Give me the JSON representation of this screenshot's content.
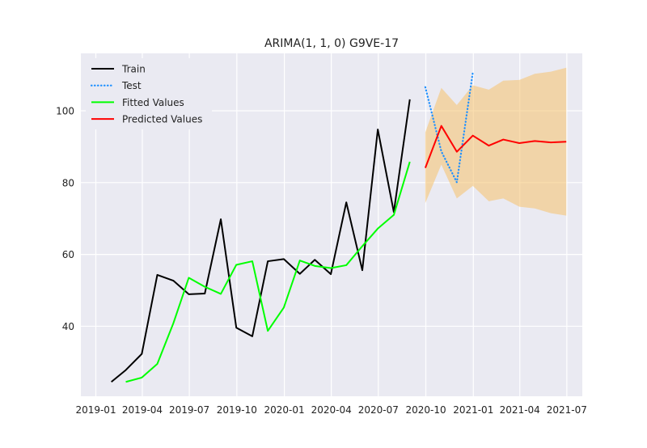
{
  "chart_data": {
    "type": "line",
    "title": "ARIMA(1, 1, 0) G9VE-17",
    "xlabel": "",
    "ylabel": "",
    "grid": true,
    "legend_position": "top-left",
    "xlim": [
      "2018-12-03",
      "2021-07-31"
    ],
    "ylim": [
      20.5,
      116
    ],
    "y_ticks": [
      40,
      60,
      80,
      100
    ],
    "x_ticks": [
      {
        "date": "2019-01-01",
        "label": "2019-01"
      },
      {
        "date": "2019-04-01",
        "label": "2019-04"
      },
      {
        "date": "2019-07-01",
        "label": "2019-07"
      },
      {
        "date": "2019-10-01",
        "label": "2019-10"
      },
      {
        "date": "2020-01-01",
        "label": "2020-01"
      },
      {
        "date": "2020-04-01",
        "label": "2020-04"
      },
      {
        "date": "2020-07-01",
        "label": "2020-07"
      },
      {
        "date": "2020-10-01",
        "label": "2020-10"
      },
      {
        "date": "2021-01-01",
        "label": "2021-01"
      },
      {
        "date": "2021-04-01",
        "label": "2021-04"
      },
      {
        "date": "2021-07-01",
        "label": "2021-07"
      }
    ],
    "series": [
      {
        "name": "Train",
        "color": "#000000",
        "style": "solid",
        "points": [
          [
            "2019-01-31",
            24.5
          ],
          [
            "2019-02-28",
            27.8
          ],
          [
            "2019-03-31",
            32.3
          ],
          [
            "2019-04-30",
            54.3
          ],
          [
            "2019-05-31",
            52.7
          ],
          [
            "2019-06-30",
            48.9
          ],
          [
            "2019-07-31",
            49.1
          ],
          [
            "2019-08-31",
            69.8
          ],
          [
            "2019-09-30",
            39.6
          ],
          [
            "2019-10-31",
            37.2
          ],
          [
            "2019-11-30",
            58.1
          ],
          [
            "2019-12-31",
            58.7
          ],
          [
            "2020-01-31",
            54.6
          ],
          [
            "2020-02-29",
            58.5
          ],
          [
            "2020-03-31",
            54.5
          ],
          [
            "2020-04-30",
            74.5
          ],
          [
            "2020-05-31",
            55.6
          ],
          [
            "2020-06-30",
            94.8
          ],
          [
            "2020-07-31",
            71.8
          ],
          [
            "2020-08-31",
            103.2
          ]
        ]
      },
      {
        "name": "Test",
        "color": "#1e90ff",
        "style": "dotted",
        "points": [
          [
            "2020-09-30",
            106.6
          ],
          [
            "2020-10-31",
            88.7
          ],
          [
            "2020-11-30",
            80.1
          ],
          [
            "2020-12-31",
            110.7
          ]
        ]
      },
      {
        "name": "Fitted Values",
        "color": "#00ff00",
        "style": "solid",
        "points": [
          [
            "2019-02-28",
            24.5
          ],
          [
            "2019-03-31",
            25.7
          ],
          [
            "2019-04-30",
            29.5
          ],
          [
            "2019-05-31",
            40.8
          ],
          [
            "2019-06-30",
            53.5
          ],
          [
            "2019-07-31",
            51.0
          ],
          [
            "2019-08-31",
            49.0
          ],
          [
            "2019-09-30",
            57.1
          ],
          [
            "2019-10-31",
            58.1
          ],
          [
            "2019-11-30",
            38.7
          ],
          [
            "2019-12-31",
            45.2
          ],
          [
            "2020-01-31",
            58.3
          ],
          [
            "2020-02-29",
            56.8
          ],
          [
            "2020-03-31",
            56.2
          ],
          [
            "2020-04-30",
            57.0
          ],
          [
            "2020-05-31",
            62.3
          ],
          [
            "2020-06-30",
            67.2
          ],
          [
            "2020-07-31",
            71.0
          ],
          [
            "2020-08-31",
            85.8
          ]
        ]
      },
      {
        "name": "Predicted Values",
        "color": "#ff0000",
        "style": "solid",
        "points": [
          [
            "2020-09-30",
            84.1
          ],
          [
            "2020-10-31",
            95.8
          ],
          [
            "2020-11-30",
            88.6
          ],
          [
            "2020-12-31",
            93.1
          ],
          [
            "2021-01-31",
            90.3
          ],
          [
            "2021-02-28",
            92.0
          ],
          [
            "2021-03-31",
            91.0
          ],
          [
            "2021-04-30",
            91.6
          ],
          [
            "2021-05-31",
            91.2
          ],
          [
            "2021-06-30",
            91.4
          ]
        ]
      }
    ],
    "confidence_interval": {
      "color": "#f5c16c",
      "opacity": 0.55,
      "points": [
        [
          "2020-09-30",
          74.3,
          94.0
        ],
        [
          "2020-10-31",
          85.0,
          106.4
        ],
        [
          "2020-11-30",
          75.6,
          101.6
        ],
        [
          "2020-12-31",
          79.1,
          107.1
        ],
        [
          "2021-01-31",
          74.8,
          105.9
        ],
        [
          "2021-02-28",
          75.6,
          108.4
        ],
        [
          "2021-03-31",
          73.3,
          108.6
        ],
        [
          "2021-04-30",
          72.8,
          110.3
        ],
        [
          "2021-05-31",
          71.5,
          110.9
        ],
        [
          "2021-06-30",
          70.8,
          112.0
        ]
      ]
    }
  }
}
